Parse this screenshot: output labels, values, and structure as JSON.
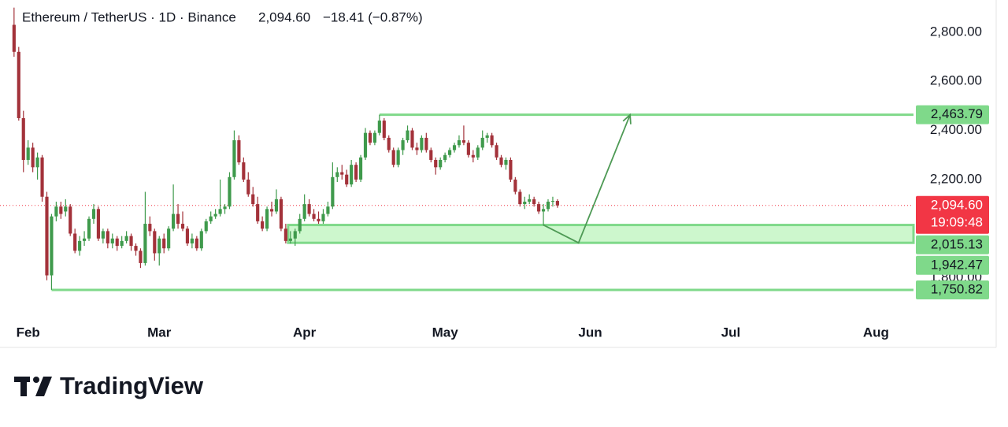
{
  "header": {
    "symbol": "Ethereum / TetherUS · 1D · Binance",
    "price": "2,094.60",
    "change": "−18.41 (−0.87%)"
  },
  "chart_data": {
    "type": "candlestick",
    "open": [
      2830,
      2720,
      2450,
      2280,
      2330,
      2250,
      2290,
      2130,
      1810,
      2050,
      2090,
      2070,
      2090,
      1980,
      1910,
      1950,
      1960,
      2040,
      2080,
      1960,
      1990,
      1940,
      1960,
      1930,
      1950,
      1970,
      1930,
      1910,
      1860,
      2020,
      1990,
      1900,
      1960,
      1920,
      2000,
      2060,
      2020,
      2000,
      1940,
      1960,
      1920,
      1990,
      2030,
      2050,
      2060,
      2080,
      2090,
      2210,
      2360,
      2270,
      2200,
      2140,
      2100,
      2030,
      2000,
      2080,
      2070,
      2120,
      2000,
      1950,
      1960,
      1990,
      2040,
      2100,
      2060,
      2040,
      2030,
      2060,
      2090,
      2210,
      2230,
      2220,
      2180,
      2260,
      2200,
      2290,
      2390,
      2350,
      2390,
      2440,
      2370,
      2320,
      2260,
      2320,
      2360,
      2400,
      2330,
      2320,
      2370,
      2320,
      2280,
      2250,
      2280,
      2300,
      2320,
      2340,
      2360,
      2350,
      2300,
      2290,
      2330,
      2370,
      2380,
      2340,
      2290,
      2260,
      2280,
      2200,
      2150,
      2100,
      2110,
      2120,
      2100,
      2070,
      2080,
      2110,
      2113.01
    ],
    "high": [
      2900,
      2740,
      2480,
      2360,
      2350,
      2310,
      2300,
      2150,
      2060,
      2110,
      2110,
      2120,
      2100,
      2000,
      1970,
      1990,
      2050,
      2100,
      2090,
      2000,
      2000,
      1980,
      1970,
      1970,
      1990,
      1980,
      1940,
      1920,
      2150,
      2050,
      2000,
      1970,
      1980,
      2010,
      2180,
      2100,
      2070,
      2010,
      1980,
      1970,
      2000,
      2040,
      2070,
      2080,
      2200,
      2100,
      2230,
      2400,
      2380,
      2290,
      2230,
      2170,
      2130,
      2050,
      2090,
      2110,
      2160,
      2130,
      2020,
      1990,
      2000,
      2060,
      2140,
      2120,
      2080,
      2070,
      2080,
      2110,
      2270,
      2250,
      2260,
      2240,
      2280,
      2270,
      2300,
      2410,
      2400,
      2400,
      2464,
      2450,
      2380,
      2330,
      2330,
      2370,
      2420,
      2410,
      2350,
      2380,
      2390,
      2330,
      2290,
      2290,
      2310,
      2330,
      2350,
      2380,
      2420,
      2360,
      2320,
      2340,
      2400,
      2390,
      2390,
      2350,
      2300,
      2290,
      2290,
      2210,
      2160,
      2130,
      2140,
      2130,
      2110,
      2100,
      2120,
      2130,
      2120
    ],
    "low": [
      2700,
      2440,
      2230,
      2260,
      2230,
      2200,
      2110,
      1790,
      1751,
      2030,
      2040,
      2050,
      1970,
      1900,
      1890,
      1930,
      1950,
      2020,
      1950,
      1940,
      1920,
      1920,
      1910,
      1920,
      1940,
      1910,
      1890,
      1840,
      1850,
      1970,
      1870,
      1850,
      1900,
      1910,
      1990,
      2000,
      1990,
      1930,
      1920,
      1910,
      1910,
      1980,
      2020,
      2040,
      2050,
      2060,
      2080,
      2200,
      2260,
      2190,
      2130,
      2090,
      2020,
      1990,
      1990,
      2050,
      2060,
      1990,
      1940,
      1940,
      1930,
      1980,
      2030,
      2050,
      2030,
      2020,
      2020,
      2050,
      2080,
      2190,
      2200,
      2170,
      2170,
      2190,
      2190,
      2280,
      2340,
      2340,
      2380,
      2360,
      2310,
      2250,
      2250,
      2300,
      2350,
      2320,
      2300,
      2310,
      2310,
      2270,
      2220,
      2240,
      2270,
      2290,
      2310,
      2330,
      2340,
      2290,
      2270,
      2280,
      2320,
      2350,
      2330,
      2280,
      2250,
      2240,
      2190,
      2140,
      2090,
      2080,
      2100,
      2090,
      2060,
      2015,
      2070,
      2090,
      2085
    ],
    "close": [
      2720,
      2450,
      2280,
      2330,
      2250,
      2290,
      2130,
      1810,
      2050,
      2090,
      2060,
      2090,
      1980,
      1910,
      1950,
      1960,
      2040,
      2080,
      1960,
      1990,
      1940,
      1960,
      1930,
      1950,
      1970,
      1930,
      1910,
      1860,
      2020,
      1990,
      1900,
      1960,
      1920,
      2000,
      2060,
      2020,
      2000,
      1940,
      1960,
      1920,
      1990,
      2030,
      2050,
      2060,
      2080,
      2090,
      2210,
      2360,
      2270,
      2200,
      2140,
      2100,
      2030,
      2000,
      2080,
      2070,
      2120,
      2000,
      1950,
      1960,
      1990,
      2040,
      2100,
      2060,
      2040,
      2030,
      2060,
      2090,
      2210,
      2230,
      2220,
      2180,
      2260,
      2200,
      2290,
      2390,
      2350,
      2390,
      2440,
      2370,
      2320,
      2260,
      2320,
      2360,
      2400,
      2330,
      2320,
      2370,
      2320,
      2280,
      2250,
      2280,
      2300,
      2320,
      2340,
      2360,
      2350,
      2300,
      2290,
      2330,
      2370,
      2380,
      2340,
      2290,
      2260,
      2280,
      2200,
      2150,
      2100,
      2110,
      2120,
      2100,
      2070,
      2080,
      2110,
      2113.01,
      2094.6
    ],
    "up_color": "#3f9a4c",
    "down_color": "#a3323a",
    "xlim": [
      -3,
      192
    ],
    "xticks": [
      {
        "value": 3,
        "label": "Feb"
      },
      {
        "value": 31,
        "label": "Mar"
      },
      {
        "value": 62,
        "label": "Apr"
      },
      {
        "value": 92,
        "label": "May"
      },
      {
        "value": 123,
        "label": "Jun"
      },
      {
        "value": 153,
        "label": "Jul"
      },
      {
        "value": 184,
        "label": "Aug"
      }
    ],
    "ylim": [
      1616,
      2931
    ],
    "yticks": [
      {
        "value": 2800,
        "label": "2,800.00"
      },
      {
        "value": 2600,
        "label": "2,600.00"
      },
      {
        "value": 2400,
        "label": "2,400.00"
      },
      {
        "value": 2200,
        "label": "2,200.00"
      },
      {
        "value": 1800,
        "label": "1,800.00"
      }
    ],
    "levels": [
      {
        "value": 2463.79,
        "label": "2,463.79",
        "start": 78
      },
      {
        "value": 1750.82,
        "label": "1,750.82",
        "start": 8
      }
    ],
    "zone": {
      "top": 2015.13,
      "bottom": 1942.47,
      "top_label": "2,015.13",
      "bottom_label": "1,942.47",
      "start": 58.5
    },
    "level_color": "#7fd98a",
    "current": {
      "value": 2094.6,
      "label": "2,094.60",
      "countdown": "19:09:48",
      "color": "#f23645"
    },
    "projection": {
      "x": [
        113,
        120.5,
        131.5
      ],
      "y": [
        2015.13,
        1942.47,
        2463.79
      ],
      "color": "#4e9a55"
    }
  },
  "brand": "TradingView"
}
